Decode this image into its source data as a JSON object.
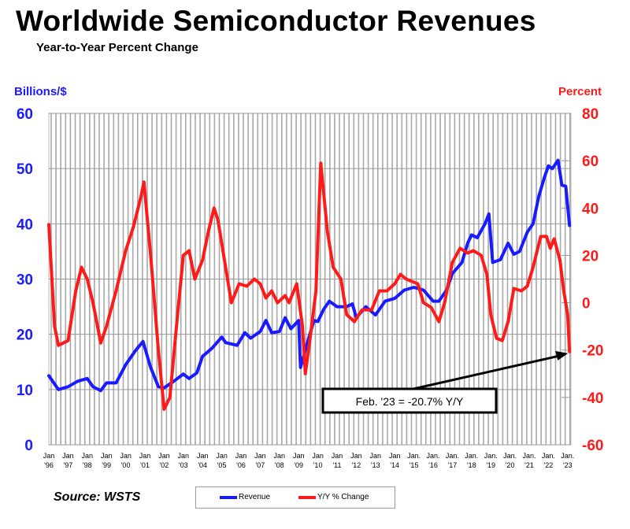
{
  "chart_data": {
    "type": "line",
    "title": "Worldwide Semiconductor Revenues",
    "subtitle": "Year-to-Year Percent Change",
    "ylabel": "Billions/$",
    "y2label": "Percent",
    "ylim": [
      0,
      60
    ],
    "y2lim": [
      -60,
      80
    ],
    "yticks": [
      "0",
      "10",
      "20",
      "30",
      "40",
      "50",
      "60"
    ],
    "y2ticks": [
      "-60",
      "-40",
      "-20",
      "0",
      "20",
      "40",
      "60",
      "80"
    ],
    "xlim": [
      1996,
      2023.1
    ],
    "xticks": [
      [
        "Jan",
        "'96"
      ],
      [
        "Jan",
        "'97"
      ],
      [
        "Jan",
        "'98"
      ],
      [
        "Jan",
        "'99"
      ],
      [
        "Jan",
        "'00"
      ],
      [
        "Jan",
        "'01"
      ],
      [
        "Jan",
        "'02"
      ],
      [
        "Jan",
        "'03"
      ],
      [
        "Jan",
        "'04"
      ],
      [
        "Jan",
        "'05"
      ],
      [
        "Jan",
        "'06"
      ],
      [
        "Jan",
        "'07"
      ],
      [
        "Jan",
        "'08"
      ],
      [
        "Jan",
        "'09"
      ],
      [
        "Jan",
        "'10"
      ],
      [
        "Jan",
        "'11"
      ],
      [
        "Jan",
        "'12"
      ],
      [
        "Jan",
        "'13"
      ],
      [
        "Jan",
        "'14"
      ],
      [
        "Jan.",
        "'15"
      ],
      [
        "Jan.",
        "'16"
      ],
      [
        "Jan.",
        "'17"
      ],
      [
        "Jan.",
        "'18"
      ],
      [
        "Jan.",
        "'19"
      ],
      [
        "Jan.",
        "'20"
      ],
      [
        "Jan.",
        "'21"
      ],
      [
        "Jan.",
        "'22"
      ],
      [
        "Jan.",
        "'23"
      ]
    ],
    "grid": true,
    "series": [
      {
        "name": "Revenue",
        "axis": "left",
        "color": "#1a1aff",
        "points": [
          [
            1996,
            12.5
          ],
          [
            1996.5,
            10
          ],
          [
            1997,
            10.5
          ],
          [
            1997.5,
            11.5
          ],
          [
            1998,
            12
          ],
          [
            1998.3,
            10.5
          ],
          [
            1998.7,
            9.8
          ],
          [
            1999,
            11.2
          ],
          [
            1999.5,
            11.2
          ],
          [
            2000,
            14.5
          ],
          [
            2000.5,
            17
          ],
          [
            2000.9,
            18.7
          ],
          [
            2001.3,
            14
          ],
          [
            2001.7,
            10.5
          ],
          [
            2002,
            10.3
          ],
          [
            2002.5,
            11.5
          ],
          [
            2003,
            12.8
          ],
          [
            2003.3,
            12
          ],
          [
            2003.7,
            13
          ],
          [
            2004,
            16
          ],
          [
            2004.5,
            17.5
          ],
          [
            2005,
            19.5
          ],
          [
            2005.2,
            18.5
          ],
          [
            2005.8,
            18
          ],
          [
            2006.2,
            20.3
          ],
          [
            2006.5,
            19.3
          ],
          [
            2007,
            20.5
          ],
          [
            2007.3,
            22.5
          ],
          [
            2007.6,
            20.3
          ],
          [
            2008,
            20.5
          ],
          [
            2008.3,
            23
          ],
          [
            2008.6,
            21
          ],
          [
            2009,
            22.5
          ],
          [
            2009.1,
            14
          ],
          [
            2009.5,
            19
          ],
          [
            2009.8,
            22.5
          ],
          [
            2010,
            22.3
          ],
          [
            2010.3,
            24.5
          ],
          [
            2010.6,
            26
          ],
          [
            2011,
            25
          ],
          [
            2011.5,
            25
          ],
          [
            2011.8,
            25.5
          ],
          [
            2012,
            23
          ],
          [
            2012.5,
            25
          ],
          [
            2013,
            23.5
          ],
          [
            2013.5,
            26
          ],
          [
            2014,
            26.5
          ],
          [
            2014.5,
            28
          ],
          [
            2015,
            28.5
          ],
          [
            2015.5,
            28
          ],
          [
            2016,
            26
          ],
          [
            2016.3,
            26
          ],
          [
            2016.7,
            28
          ],
          [
            2017,
            31
          ],
          [
            2017.5,
            33
          ],
          [
            2017.8,
            36.5
          ],
          [
            2018,
            38
          ],
          [
            2018.3,
            37.5
          ],
          [
            2018.7,
            40
          ],
          [
            2018.9,
            41.8
          ],
          [
            2019.1,
            33
          ],
          [
            2019.5,
            33.5
          ],
          [
            2019.9,
            36.5
          ],
          [
            2020.2,
            34.5
          ],
          [
            2020.5,
            35
          ],
          [
            2020.9,
            38.5
          ],
          [
            2021.2,
            40
          ],
          [
            2021.5,
            45
          ],
          [
            2021.8,
            48.5
          ],
          [
            2022,
            50.5
          ],
          [
            2022.2,
            50
          ],
          [
            2022.5,
            51.5
          ],
          [
            2022.7,
            47
          ],
          [
            2022.9,
            46.8
          ],
          [
            2023.1,
            39.7
          ]
        ]
      },
      {
        "name": "Y/Y % Change",
        "axis": "right",
        "color": "#ff1a1a",
        "points": [
          [
            1996,
            33
          ],
          [
            1996.3,
            -10
          ],
          [
            1996.5,
            -18
          ],
          [
            1997,
            -16
          ],
          [
            1997.4,
            5
          ],
          [
            1997.7,
            15
          ],
          [
            1998,
            10
          ],
          [
            1998.3,
            0
          ],
          [
            1998.7,
            -17
          ],
          [
            1999,
            -10
          ],
          [
            1999.5,
            5
          ],
          [
            2000,
            22
          ],
          [
            2000.4,
            32
          ],
          [
            2000.8,
            45
          ],
          [
            2000.95,
            51
          ],
          [
            2001.3,
            20
          ],
          [
            2001.7,
            -20
          ],
          [
            2002,
            -45
          ],
          [
            2002.3,
            -40
          ],
          [
            2002.7,
            -5
          ],
          [
            2003,
            20
          ],
          [
            2003.3,
            22
          ],
          [
            2003.6,
            10
          ],
          [
            2004,
            18
          ],
          [
            2004.3,
            30
          ],
          [
            2004.6,
            40
          ],
          [
            2004.8,
            35
          ],
          [
            2005.2,
            15
          ],
          [
            2005.5,
            0
          ],
          [
            2005.9,
            8
          ],
          [
            2006.3,
            7
          ],
          [
            2006.7,
            10
          ],
          [
            2007,
            8
          ],
          [
            2007.3,
            2
          ],
          [
            2007.6,
            5
          ],
          [
            2007.9,
            0
          ],
          [
            2008.3,
            3
          ],
          [
            2008.5,
            0
          ],
          [
            2008.9,
            8
          ],
          [
            2009.2,
            -10
          ],
          [
            2009.35,
            -30
          ],
          [
            2009.6,
            -15
          ],
          [
            2009.9,
            5
          ],
          [
            2010.15,
            59
          ],
          [
            2010.5,
            30
          ],
          [
            2010.8,
            15
          ],
          [
            2011.2,
            10
          ],
          [
            2011.5,
            -5
          ],
          [
            2011.9,
            -8
          ],
          [
            2012.3,
            -3
          ],
          [
            2012.8,
            -3
          ],
          [
            2013.2,
            5
          ],
          [
            2013.6,
            5
          ],
          [
            2014,
            8
          ],
          [
            2014.3,
            12
          ],
          [
            2014.6,
            10
          ],
          [
            2015.2,
            8
          ],
          [
            2015.5,
            0
          ],
          [
            2015.9,
            -2
          ],
          [
            2016.3,
            -8
          ],
          [
            2016.6,
            0
          ],
          [
            2017,
            17
          ],
          [
            2017.4,
            23
          ],
          [
            2017.8,
            21
          ],
          [
            2018.1,
            22
          ],
          [
            2018.5,
            20
          ],
          [
            2018.8,
            12
          ],
          [
            2019,
            -5
          ],
          [
            2019.3,
            -15
          ],
          [
            2019.6,
            -16
          ],
          [
            2019.9,
            -8
          ],
          [
            2020.2,
            6
          ],
          [
            2020.6,
            5
          ],
          [
            2020.9,
            7
          ],
          [
            2021.2,
            15
          ],
          [
            2021.6,
            28
          ],
          [
            2021.9,
            28
          ],
          [
            2022.1,
            23
          ],
          [
            2022.3,
            27
          ],
          [
            2022.6,
            18
          ],
          [
            2022.8,
            5
          ],
          [
            2023,
            -5
          ],
          [
            2023.1,
            -20.7
          ]
        ]
      }
    ],
    "annotation": "Feb. '23 = -20.7% Y/Y",
    "legend": "bottom",
    "source": "Source: WSTS"
  }
}
